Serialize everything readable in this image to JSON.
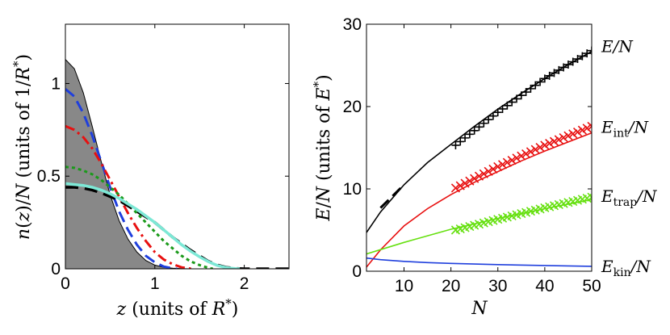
{
  "chart_data": [
    {
      "type": "line",
      "title": "",
      "xlabel": {
        "var": "z",
        "text": " (units of ",
        "unit": "R",
        "sup": "*",
        "close": ")"
      },
      "ylabel": {
        "var1": "n",
        "mid": "(",
        "var2": "z",
        "mid2": ")/",
        "var3": "N",
        "text": " (units of 1/",
        "unit": "R",
        "sup": "*",
        "close": ")"
      },
      "xlim": [
        0,
        2.5
      ],
      "ylim": [
        0,
        1.32
      ],
      "xticks": [
        0,
        1,
        2
      ],
      "xtick_labels": [
        "0",
        "1",
        "2"
      ],
      "yticks": [
        0,
        0.5,
        1
      ],
      "ytick_labels": [
        "0",
        "0.5",
        "1"
      ],
      "grid": false,
      "series": [
        {
          "name": "filled profile",
          "style": "filled",
          "color": "#888888",
          "x": [
            0,
            0.1,
            0.2,
            0.3,
            0.4,
            0.5,
            0.6,
            0.7,
            0.8,
            0.9,
            1.0,
            1.1,
            1.2,
            1.3,
            1.4,
            1.5,
            2.5
          ],
          "y": [
            1.13,
            1.08,
            0.95,
            0.77,
            0.58,
            0.4,
            0.26,
            0.16,
            0.09,
            0.045,
            0.02,
            0.008,
            0.003,
            0.001,
            0.0,
            0.0,
            0.0
          ]
        },
        {
          "name": "blue dashed",
          "style": "dashed",
          "color": "#1f3fdd",
          "x": [
            0,
            0.1,
            0.2,
            0.3,
            0.4,
            0.5,
            0.6,
            0.7,
            0.8,
            0.9,
            1.0,
            1.1,
            1.2,
            1.25
          ],
          "y": [
            0.97,
            0.93,
            0.84,
            0.72,
            0.58,
            0.44,
            0.31,
            0.21,
            0.13,
            0.07,
            0.035,
            0.012,
            0.002,
            0.0
          ]
        },
        {
          "name": "red dash-dot",
          "style": "dashdot",
          "color": "#e81010",
          "x": [
            0,
            0.1,
            0.2,
            0.3,
            0.4,
            0.5,
            0.6,
            0.7,
            0.8,
            0.9,
            1.0,
            1.1,
            1.2,
            1.3,
            1.4,
            1.45
          ],
          "y": [
            0.77,
            0.75,
            0.71,
            0.65,
            0.57,
            0.48,
            0.39,
            0.3,
            0.22,
            0.15,
            0.09,
            0.05,
            0.025,
            0.008,
            0.001,
            0.0
          ]
        },
        {
          "name": "green dotted",
          "style": "dotted",
          "color": "#1a9a1a",
          "x": [
            0,
            0.1,
            0.2,
            0.3,
            0.4,
            0.5,
            0.6,
            0.7,
            0.8,
            0.9,
            1.0,
            1.1,
            1.2,
            1.3,
            1.4,
            1.5,
            1.6,
            1.65
          ],
          "y": [
            0.55,
            0.545,
            0.53,
            0.51,
            0.48,
            0.44,
            0.4,
            0.35,
            0.3,
            0.25,
            0.2,
            0.15,
            0.11,
            0.07,
            0.04,
            0.02,
            0.005,
            0.0
          ]
        },
        {
          "name": "black dashed",
          "style": "dashed-bold",
          "color": "#000000",
          "x": [
            0,
            0.1,
            0.2,
            0.3,
            0.4,
            0.5,
            0.6,
            0.7,
            0.8,
            0.9,
            1.0,
            1.1,
            1.2,
            1.3,
            1.4,
            1.5,
            1.6,
            1.7,
            1.8,
            1.9,
            2.0,
            2.5
          ],
          "y": [
            0.44,
            0.44,
            0.435,
            0.425,
            0.41,
            0.39,
            0.37,
            0.34,
            0.31,
            0.28,
            0.25,
            0.21,
            0.17,
            0.135,
            0.1,
            0.07,
            0.04,
            0.02,
            0.008,
            0.002,
            0.0,
            0.0
          ]
        },
        {
          "name": "cyan solid",
          "style": "solid-bold",
          "color": "#7de8d6",
          "x": [
            0,
            0.1,
            0.2,
            0.3,
            0.4,
            0.5,
            0.6,
            0.7,
            0.8,
            0.9,
            1.0,
            1.1,
            1.2,
            1.3,
            1.4,
            1.5,
            1.6,
            1.7,
            1.8,
            1.9,
            1.95
          ],
          "y": [
            0.46,
            0.455,
            0.45,
            0.44,
            0.425,
            0.405,
            0.38,
            0.35,
            0.32,
            0.285,
            0.25,
            0.21,
            0.17,
            0.13,
            0.095,
            0.065,
            0.038,
            0.018,
            0.006,
            0.001,
            0.0
          ]
        }
      ]
    },
    {
      "type": "line",
      "title": "",
      "xlabel": {
        "var": "N"
      },
      "ylabel": {
        "var1": "E",
        "mid": "/",
        "var2": "N",
        "text": " (units of ",
        "unit": "E",
        "sup": "*",
        "close": ")"
      },
      "xlim": [
        2,
        50
      ],
      "ylim": [
        0,
        30
      ],
      "xticks": [
        10,
        20,
        30,
        40,
        50
      ],
      "xtick_labels": [
        "10",
        "20",
        "30",
        "40",
        "50"
      ],
      "yticks": [
        0,
        10,
        20,
        30
      ],
      "ytick_labels": [
        "0",
        "10",
        "20",
        "30"
      ],
      "grid": false,
      "curve_labels": [
        {
          "main": "E",
          "sub": "",
          "tail": "/N",
          "at_y": 27.3
        },
        {
          "main": "E",
          "sub": "int",
          "tail": "/N",
          "at_y": 17.5
        },
        {
          "main": "E",
          "sub": "trap",
          "tail": "/N",
          "at_y": 9.1
        },
        {
          "main": "E",
          "sub": "kin",
          "tail": "/N",
          "at_y": 0.6
        }
      ],
      "series": [
        {
          "name": "E/N",
          "style": "solid",
          "color": "#000000",
          "x": [
            2,
            5,
            10,
            15,
            20,
            25,
            30,
            35,
            40,
            45,
            50
          ],
          "y": [
            4.7,
            7.2,
            10.5,
            13.2,
            15.4,
            17.6,
            19.7,
            21.6,
            23.4,
            25.1,
            26.7
          ]
        },
        {
          "name": "E_int/N",
          "style": "solid",
          "color": "#e81010",
          "x": [
            2,
            5,
            10,
            15,
            20,
            25,
            30,
            35,
            40,
            45,
            50
          ],
          "y": [
            0.5,
            2.6,
            5.5,
            7.6,
            9.3,
            10.8,
            12.1,
            13.4,
            14.6,
            15.7,
            16.8
          ]
        },
        {
          "name": "E_trap/N",
          "style": "solid",
          "color": "#66e010",
          "x": [
            2,
            10,
            20,
            30,
            40,
            50
          ],
          "y": [
            2.1,
            3.5,
            5.1,
            6.4,
            7.6,
            8.7
          ]
        },
        {
          "name": "E_kin/N",
          "style": "solid",
          "color": "#1f3fdd",
          "x": [
            2,
            5,
            10,
            15,
            20,
            30,
            40,
            50
          ],
          "y": [
            1.6,
            1.4,
            1.2,
            1.05,
            0.95,
            0.8,
            0.7,
            0.6
          ]
        },
        {
          "name": "asymptote",
          "style": "dashed",
          "color": "#000000",
          "x": [
            5,
            10
          ],
          "y": [
            7.7,
            10.5
          ]
        }
      ],
      "markers": [
        {
          "name": "E/N markers",
          "color": "#000000",
          "shape": "plus",
          "x_start": 21,
          "x_end": 50,
          "x_step": 1,
          "fit": [
            [
              21,
              15.3
            ],
            [
              30,
              19.3
            ],
            [
              40,
              23.4
            ],
            [
              50,
              26.8
            ]
          ]
        },
        {
          "name": "E_int/N markers",
          "color": "#e81010",
          "shape": "x",
          "x_start": 21,
          "x_end": 50,
          "x_step": 1,
          "fit": [
            [
              21,
              10.1
            ],
            [
              30,
              12.7
            ],
            [
              40,
              15.3
            ],
            [
              50,
              17.6
            ]
          ]
        },
        {
          "name": "E_trap/N markers",
          "color": "#66e010",
          "shape": "x",
          "x_start": 21,
          "x_end": 50,
          "x_step": 1,
          "fit": [
            [
              21,
              5.0
            ],
            [
              30,
              6.3
            ],
            [
              40,
              7.7
            ],
            [
              50,
              9.0
            ]
          ]
        }
      ]
    }
  ]
}
